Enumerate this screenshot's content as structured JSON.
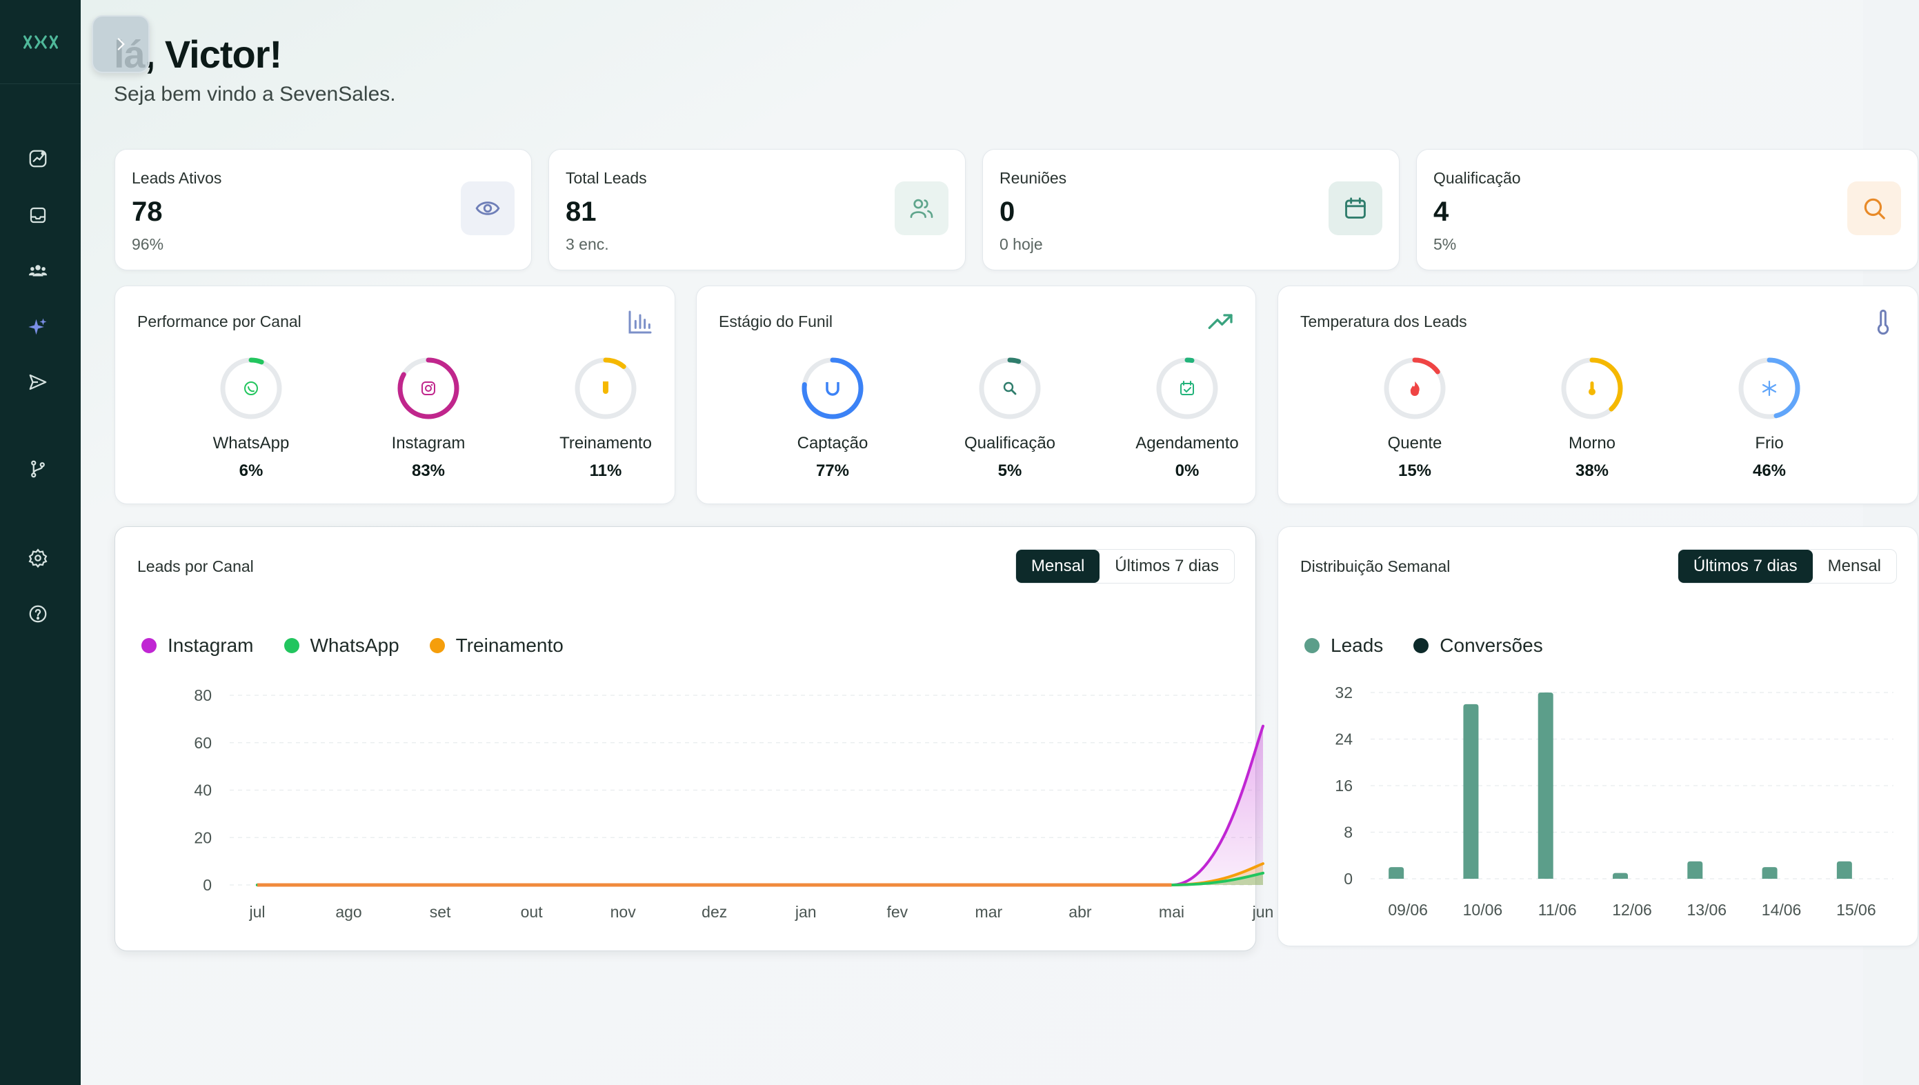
{
  "greeting": "lá, Victor!",
  "subgreeting": "Seja bem vindo a SevenSales.",
  "stats": [
    {
      "label": "Leads Ativos",
      "value": "78",
      "sub": "96%",
      "icon": "eye-icon",
      "bg": "#eef1f7",
      "color": "#6f7fb8"
    },
    {
      "label": "Total Leads",
      "value": "81",
      "sub": "3 enc.",
      "icon": "users-icon",
      "bg": "#eaf3f0",
      "color": "#5fa58c"
    },
    {
      "label": "Reuniões",
      "value": "0",
      "sub": "0 hoje",
      "icon": "calendar-icon",
      "bg": "#e4efec",
      "color": "#2f7d6c"
    },
    {
      "label": "Qualificação",
      "value": "4",
      "sub": "5%",
      "icon": "search-icon",
      "bg": "#fdf1e4",
      "color": "#e88a28"
    }
  ],
  "panels": {
    "performance": {
      "title": "Performance por Canal",
      "items": [
        {
          "label": "WhatsApp",
          "pct": "6%",
          "value": 6,
          "color": "#22c55e",
          "icon": "whatsapp-icon"
        },
        {
          "label": "Instagram",
          "pct": "83%",
          "value": 83,
          "color": "#c0268c",
          "icon": "instagram-icon"
        },
        {
          "label": "Treinamento",
          "pct": "11%",
          "value": 11,
          "color": "#f5b800",
          "icon": "flask-icon"
        }
      ]
    },
    "funil": {
      "title": "Estágio do Funil",
      "items": [
        {
          "label": "Captação",
          "pct": "77%",
          "value": 77,
          "color": "#3b82f6",
          "icon": "magnet-icon"
        },
        {
          "label": "Qualificação",
          "pct": "5%",
          "value": 5,
          "color": "#2f7d6c",
          "icon": "search-icon"
        },
        {
          "label": "Agendamento",
          "pct": "0%",
          "value": 0,
          "color": "#22b37a",
          "icon": "calendar-check-icon"
        }
      ]
    },
    "temperatura": {
      "title": "Temperatura dos Leads",
      "items": [
        {
          "label": "Quente",
          "pct": "15%",
          "value": 15,
          "color": "#ef4444",
          "icon": "flame-icon"
        },
        {
          "label": "Morno",
          "pct": "38%",
          "value": 38,
          "color": "#f5b800",
          "icon": "thermometer-icon"
        },
        {
          "label": "Frio",
          "pct": "46%",
          "value": 46,
          "color": "#60a5fa",
          "icon": "snowflake-icon"
        }
      ]
    }
  },
  "leads_canal": {
    "title": "Leads por Canal",
    "tabs": [
      "Mensal",
      "Últimos 7 dias"
    ],
    "active_tab": "Mensal"
  },
  "distribuicao": {
    "title": "Distribuição Semanal",
    "tabs": [
      "Últimos 7 dias",
      "Mensal"
    ],
    "active_tab": "Últimos 7 dias"
  },
  "chart_data": [
    {
      "type": "area",
      "title": "Leads por Canal",
      "categories": [
        "jul",
        "ago",
        "set",
        "out",
        "nov",
        "dez",
        "jan",
        "fev",
        "mar",
        "abr",
        "mai",
        "jun"
      ],
      "series": [
        {
          "name": "Instagram",
          "color": "#c026d3",
          "values": [
            0,
            0,
            0,
            0,
            0,
            0,
            0,
            0,
            0,
            0,
            0,
            67
          ]
        },
        {
          "name": "WhatsApp",
          "color": "#22c55e",
          "values": [
            0,
            0,
            0,
            0,
            0,
            0,
            0,
            0,
            0,
            0,
            0,
            5
          ]
        },
        {
          "name": "Treinamento",
          "color": "#f59e0b",
          "values": [
            0,
            0,
            0,
            0,
            0,
            0,
            0,
            0,
            0,
            0,
            0,
            9
          ]
        }
      ],
      "yticks": [
        0,
        20,
        40,
        60,
        80
      ],
      "ylim": [
        0,
        80
      ],
      "legend": "top-left",
      "grid": true
    },
    {
      "type": "bar",
      "title": "Distribuição Semanal",
      "categories": [
        "09/06",
        "10/06",
        "11/06",
        "12/06",
        "13/06",
        "14/06",
        "15/06"
      ],
      "series": [
        {
          "name": "Leads",
          "color": "#5c9e8a",
          "values": [
            2,
            30,
            32,
            1,
            3,
            2,
            3
          ]
        },
        {
          "name": "Conversões",
          "color": "#0d2a2a",
          "values": [
            0,
            0,
            0,
            0,
            0,
            0,
            0
          ]
        }
      ],
      "yticks": [
        0,
        8,
        16,
        24,
        32
      ],
      "ylim": [
        0,
        32
      ],
      "legend": "top-left",
      "grid": true
    }
  ]
}
